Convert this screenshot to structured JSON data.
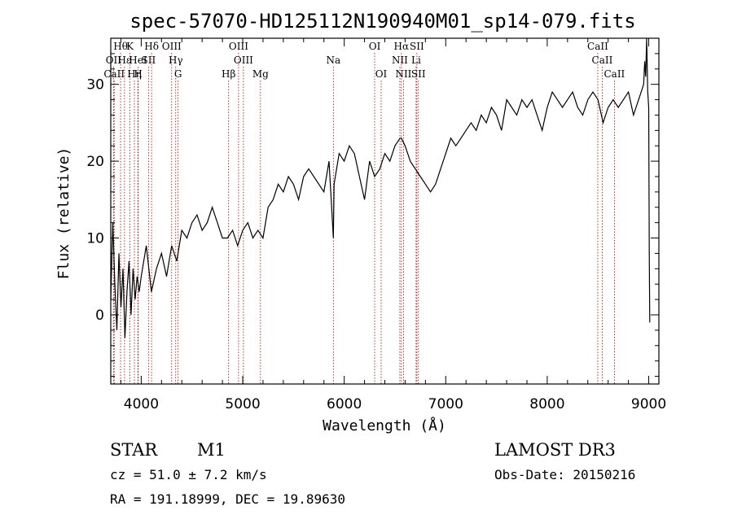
{
  "chart_data": {
    "type": "line",
    "title": "spec-57070-HD125112N190940M01_sp14-079.fits",
    "xlabel": "Wavelength (Å)",
    "ylabel": "Flux (relative)",
    "xlim": [
      3700,
      9100
    ],
    "ylim": [
      -9,
      36
    ],
    "xticks": [
      4000,
      5000,
      6000,
      7000,
      8000,
      9000
    ],
    "yticks": [
      0,
      10,
      20,
      30
    ],
    "series": [
      {
        "name": "spectrum",
        "x": [
          3700,
          3720,
          3740,
          3760,
          3780,
          3800,
          3820,
          3840,
          3860,
          3880,
          3900,
          3920,
          3940,
          3960,
          3980,
          4000,
          4050,
          4100,
          4150,
          4200,
          4250,
          4300,
          4350,
          4400,
          4450,
          4500,
          4550,
          4600,
          4650,
          4700,
          4750,
          4800,
          4850,
          4900,
          4950,
          5000,
          5050,
          5100,
          5150,
          5200,
          5250,
          5300,
          5350,
          5400,
          5450,
          5500,
          5550,
          5600,
          5650,
          5700,
          5750,
          5800,
          5850,
          5893,
          5900,
          5950,
          6000,
          6050,
          6100,
          6150,
          6200,
          6250,
          6300,
          6350,
          6400,
          6450,
          6500,
          6550,
          6563,
          6600,
          6650,
          6700,
          6750,
          6800,
          6850,
          6900,
          6950,
          7000,
          7050,
          7100,
          7150,
          7200,
          7250,
          7300,
          7350,
          7400,
          7450,
          7500,
          7550,
          7600,
          7650,
          7700,
          7750,
          7800,
          7850,
          7900,
          7950,
          8000,
          8050,
          8100,
          8150,
          8200,
          8250,
          8300,
          8350,
          8400,
          8450,
          8500,
          8550,
          8600,
          8650,
          8700,
          8750,
          8800,
          8850,
          8900,
          8950,
          8960,
          8970,
          8980,
          8990,
          9000,
          9005,
          9010
        ],
        "y": [
          2,
          12,
          4,
          -2,
          8,
          1,
          6,
          -3,
          3,
          7,
          0,
          6,
          2,
          5,
          3,
          5,
          9,
          3,
          6,
          8,
          5,
          9,
          7,
          11,
          10,
          12,
          13,
          11,
          12,
          14,
          12,
          10,
          10,
          11,
          9,
          11,
          12,
          10,
          11,
          10,
          14,
          15,
          17,
          16,
          18,
          17,
          15,
          18,
          19,
          18,
          17,
          16,
          20,
          10,
          17,
          21,
          20,
          22,
          21,
          18,
          15,
          20,
          18,
          19,
          21,
          20,
          22,
          23,
          23,
          22,
          20,
          19,
          18,
          17,
          16,
          17,
          19,
          21,
          23,
          22,
          23,
          24,
          25,
          24,
          26,
          25,
          27,
          26,
          24,
          28,
          27,
          26,
          28,
          27,
          28,
          26,
          24,
          27,
          29,
          28,
          27,
          28,
          29,
          27,
          26,
          28,
          29,
          28,
          25,
          27,
          28,
          27,
          28,
          29,
          26,
          28,
          30,
          33,
          31,
          36,
          29,
          27,
          8,
          -1
        ]
      }
    ],
    "spectral_lines": [
      {
        "label": "Hθ",
        "wl": 3797,
        "row": 0
      },
      {
        "label": "OII",
        "wl": 3727,
        "row": 1
      },
      {
        "label": "CaII",
        "wl": 3734,
        "row": 2
      },
      {
        "label": "Hε",
        "wl": 3835,
        "row": 1
      },
      {
        "label": "K",
        "wl": 3889,
        "row": 0
      },
      {
        "label": "Hη",
        "wl": 3933,
        "row": 2
      },
      {
        "label": "HeI",
        "wl": 3968,
        "row": 1
      },
      {
        "label": "H",
        "wl": 3970,
        "row": 2
      },
      {
        "label": "SII",
        "wl": 4072,
        "row": 1
      },
      {
        "label": "Hδ",
        "wl": 4102,
        "row": 0
      },
      {
        "label": "OIII",
        "wl": 4300,
        "row": 0
      },
      {
        "label": "Hγ",
        "wl": 4340,
        "row": 1
      },
      {
        "label": "G",
        "wl": 4363,
        "row": 2
      },
      {
        "label": "Hβ",
        "wl": 4861,
        "row": 2
      },
      {
        "label": "OIII",
        "wl": 4959,
        "row": 0
      },
      {
        "label": "OIII",
        "wl": 5007,
        "row": 1
      },
      {
        "label": "Mg",
        "wl": 5175,
        "row": 2
      },
      {
        "label": "Na",
        "wl": 5893,
        "row": 1
      },
      {
        "label": "OI",
        "wl": 6300,
        "row": 0
      },
      {
        "label": "OI",
        "wl": 6364,
        "row": 2
      },
      {
        "label": "Hα",
        "wl": 6563,
        "row": 0
      },
      {
        "label": "NII",
        "wl": 6548,
        "row": 1
      },
      {
        "label": "NII",
        "wl": 6584,
        "row": 2
      },
      {
        "label": "SII",
        "wl": 6716,
        "row": 0
      },
      {
        "label": "Li",
        "wl": 6708,
        "row": 1
      },
      {
        "label": "SII",
        "wl": 6731,
        "row": 2
      },
      {
        "label": "CaII",
        "wl": 8498,
        "row": 0
      },
      {
        "label": "CaII",
        "wl": 8542,
        "row": 1
      },
      {
        "label": "CaII",
        "wl": 8662,
        "row": 2
      }
    ]
  },
  "info": {
    "object_type": "STAR",
    "subclass": "M1",
    "survey": "LAMOST DR3",
    "redshift": "cz = 51.0 ± 7.2 km/s",
    "obs_date": "Obs-Date: 20150216",
    "coords": "RA = 191.18999, DEC =  19.89630"
  },
  "colors": {
    "spectrum": "#000000",
    "line_marker": "#b00000",
    "axis": "#000000"
  }
}
